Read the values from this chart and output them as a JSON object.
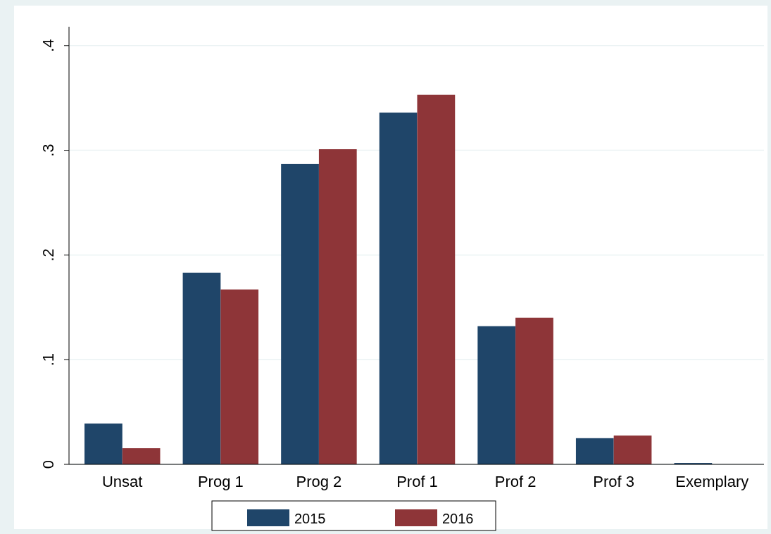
{
  "chart_data": {
    "type": "bar",
    "categories": [
      "Unsat",
      "Prog 1",
      "Prog 2",
      "Prof 1",
      "Prof 2",
      "Prof 3",
      "Exemplary"
    ],
    "series": [
      {
        "name": "2015",
        "color": "#1f4569",
        "values": [
          0.039,
          0.183,
          0.287,
          0.336,
          0.132,
          0.025,
          0.0013
        ]
      },
      {
        "name": "2016",
        "color": "#8e3538",
        "values": [
          0.0154,
          0.167,
          0.301,
          0.353,
          0.14,
          0.0275,
          0
        ]
      }
    ],
    "ylim": [
      0,
      0.418
    ],
    "yticks": [
      {
        "value": 0,
        "label": "0"
      },
      {
        "value": 0.1,
        "label": ".1"
      },
      {
        "value": 0.2,
        "label": ".2"
      },
      {
        "value": 0.3,
        "label": ".3"
      },
      {
        "value": 0.4,
        "label": ".4"
      }
    ],
    "grid": "y",
    "legend": "bottom"
  }
}
